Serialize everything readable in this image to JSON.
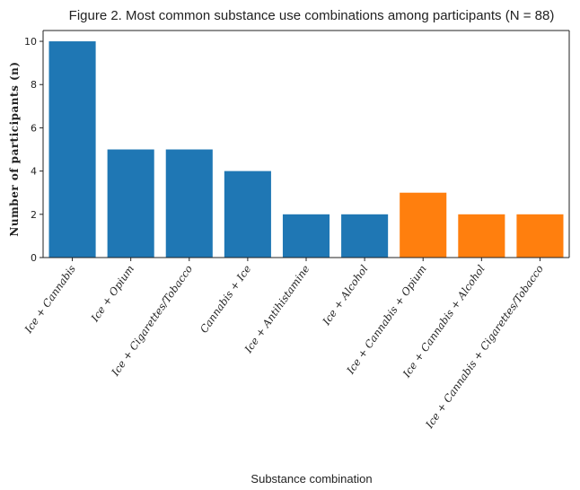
{
  "chart_data": {
    "type": "bar",
    "title": "Figure 2. Most common substance use combinations among participants (N = 88)",
    "xlabel": "Substance combination",
    "ylabel": "Number of participants (n)",
    "ylim": [
      0,
      10.5
    ],
    "yticks": [
      0,
      2,
      4,
      6,
      8,
      10
    ],
    "grid": false,
    "categories": [
      "Ice + Cannabis",
      "Ice + Opium",
      "Ice + Cigarettes/Tobacco",
      "Cannabis + Ice",
      "Ice + Antihistamine",
      "Ice + Alcohol",
      "Ice + Cannabis + Opium",
      "Ice + Cannabis + Alcohol",
      "Ice + Cannabis + Cigarettes/Tobacco"
    ],
    "values": [
      10,
      5,
      5,
      4,
      2,
      2,
      3,
      2,
      2
    ],
    "bar_colors": [
      "#1f77b4",
      "#1f77b4",
      "#1f77b4",
      "#1f77b4",
      "#1f77b4",
      "#1f77b4",
      "#ff7f0e",
      "#ff7f0e",
      "#ff7f0e"
    ]
  }
}
